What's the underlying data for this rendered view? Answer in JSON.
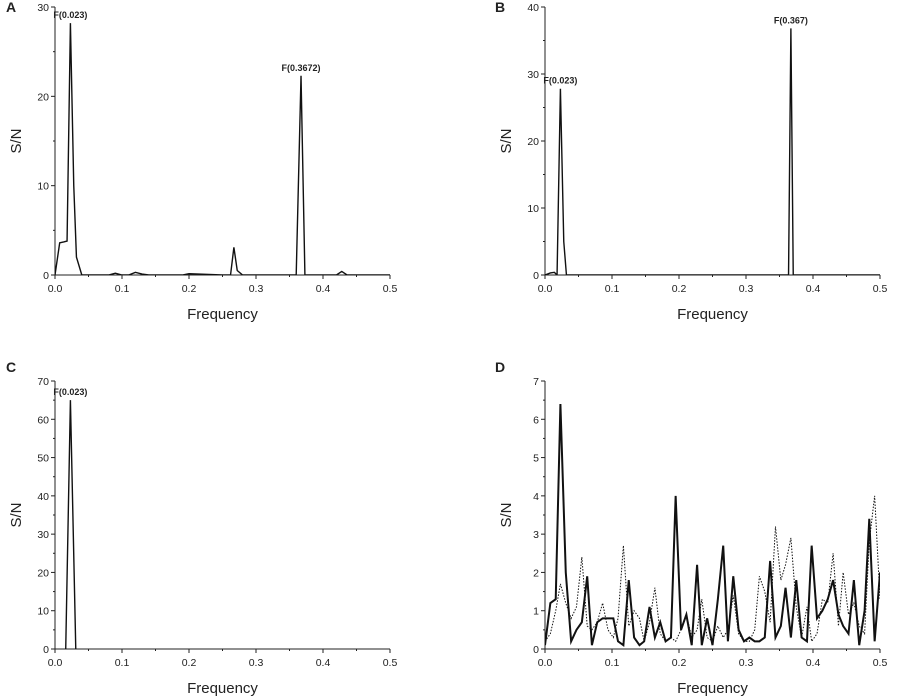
{
  "chart_data": [
    {
      "id": "A",
      "type": "line",
      "xlabel": "Frequency",
      "ylabel": "S/N",
      "xlim": [
        0,
        0.5
      ],
      "ylim": [
        0,
        30
      ],
      "xticks": [
        0.0,
        0.1,
        0.2,
        0.3,
        0.4,
        0.5
      ],
      "xtick_labels": [
        "0.0",
        "0.1",
        "0.2",
        "0.3",
        "0.4",
        "0.5"
      ],
      "yticks": [
        0,
        10,
        20,
        30
      ],
      "ytick_labels": [
        "0",
        "10",
        "20",
        "30"
      ],
      "series": [
        {
          "style": "solid",
          "x": [
            0,
            0.007,
            0.013,
            0.018,
            0.023,
            0.028,
            0.032,
            0.04,
            0.05,
            0.08,
            0.09,
            0.1,
            0.11,
            0.12,
            0.13,
            0.14,
            0.19,
            0.2,
            0.25,
            0.255,
            0.262,
            0.267,
            0.272,
            0.28,
            0.35,
            0.36,
            0.3672,
            0.373,
            0.38,
            0.42,
            0.428,
            0.436,
            0.5
          ],
          "y": [
            0,
            3.6,
            3.7,
            3.8,
            28.2,
            10,
            2,
            0,
            0,
            0,
            0.2,
            0,
            0,
            0.3,
            0.1,
            0,
            0,
            0.15,
            0,
            0,
            0,
            3.1,
            0.5,
            0,
            0,
            0,
            22.3,
            0,
            0,
            0,
            0.4,
            0,
            0
          ]
        }
      ],
      "annotations": [
        {
          "text": "F(0.023)",
          "x": 0.023,
          "y": 28.2
        },
        {
          "text": "F(0.3672)",
          "x": 0.3672,
          "y": 22.3
        }
      ]
    },
    {
      "id": "B",
      "type": "line",
      "xlabel": "Frequency",
      "ylabel": "S/N",
      "xlim": [
        0,
        0.5
      ],
      "ylim": [
        0,
        40
      ],
      "xticks": [
        0.0,
        0.1,
        0.2,
        0.3,
        0.4,
        0.5
      ],
      "xtick_labels": [
        "0.0",
        "0.1",
        "0.2",
        "0.3",
        "0.4",
        "0.5"
      ],
      "yticks": [
        0,
        10,
        20,
        30,
        40
      ],
      "ytick_labels": [
        "0",
        "10",
        "20",
        "30",
        "40"
      ],
      "series": [
        {
          "style": "solid",
          "x": [
            0,
            0.008,
            0.014,
            0.018,
            0.023,
            0.028,
            0.032,
            0.5,
            0.36,
            0.3635,
            0.367,
            0.3705,
            0.374
          ],
          "y": [
            0,
            0.3,
            0.4,
            0,
            27.8,
            5,
            0,
            0,
            0,
            0,
            36.8,
            0,
            0
          ]
        }
      ],
      "annotations": [
        {
          "text": "F(0.023)",
          "x": 0.023,
          "y": 27.8
        },
        {
          "text": "F(0.367)",
          "x": 0.367,
          "y": 36.8
        }
      ]
    },
    {
      "id": "C",
      "type": "line",
      "xlabel": "Frequency",
      "ylabel": "S/N",
      "xlim": [
        0,
        0.5
      ],
      "ylim": [
        0,
        70
      ],
      "xticks": [
        0.0,
        0.1,
        0.2,
        0.3,
        0.4,
        0.5
      ],
      "xtick_labels": [
        "0.0",
        "0.1",
        "0.2",
        "0.3",
        "0.4",
        "0.5"
      ],
      "yticks": [
        0,
        10,
        20,
        30,
        40,
        50,
        60,
        70
      ],
      "ytick_labels": [
        "0",
        "10",
        "20",
        "30",
        "40",
        "50",
        "60",
        "70"
      ],
      "series": [
        {
          "style": "solid",
          "x": [
            0.016,
            0.023,
            0.031
          ],
          "y": [
            0,
            65,
            0
          ]
        }
      ],
      "annotations": [
        {
          "text": "F(0.023)",
          "x": 0.023,
          "y": 65
        }
      ]
    },
    {
      "id": "D",
      "type": "line",
      "xlabel": "Frequency",
      "ylabel": "S/N",
      "xlim": [
        0,
        0.5
      ],
      "ylim": [
        0,
        7
      ],
      "xticks": [
        0.0,
        0.1,
        0.2,
        0.3,
        0.4,
        0.5
      ],
      "xtick_labels": [
        "0.0",
        "0.1",
        "0.2",
        "0.3",
        "0.4",
        "0.5"
      ],
      "yticks": [
        0,
        1,
        2,
        3,
        4,
        5,
        6,
        7
      ],
      "ytick_labels": [
        "0",
        "1",
        "2",
        "3",
        "4",
        "5",
        "6",
        "7"
      ],
      "series": [
        {
          "style": "solid",
          "x": [
            0.0,
            0.008,
            0.016,
            0.023,
            0.031,
            0.039,
            0.047,
            0.055,
            0.063,
            0.07,
            0.078,
            0.086,
            0.094,
            0.102,
            0.109,
            0.117,
            0.125,
            0.133,
            0.141,
            0.148,
            0.156,
            0.164,
            0.172,
            0.18,
            0.188,
            0.195,
            0.203,
            0.211,
            0.219,
            0.227,
            0.234,
            0.242,
            0.25,
            0.258,
            0.266,
            0.273,
            0.281,
            0.289,
            0.297,
            0.305,
            0.313,
            0.32,
            0.328,
            0.336,
            0.344,
            0.352,
            0.359,
            0.367,
            0.375,
            0.383,
            0.391,
            0.398,
            0.406,
            0.414,
            0.422,
            0.43,
            0.438,
            0.445,
            0.453,
            0.461,
            0.469,
            0.477,
            0.484,
            0.492,
            0.5
          ],
          "y": [
            0.1,
            1.2,
            1.3,
            6.4,
            2.0,
            0.2,
            0.5,
            0.7,
            1.9,
            0.1,
            0.7,
            0.8,
            0.8,
            0.8,
            0.2,
            0.1,
            1.8,
            0.3,
            0.1,
            0.2,
            1.1,
            0.3,
            0.7,
            0.2,
            0.3,
            4.0,
            0.5,
            0.9,
            0.1,
            2.2,
            0.1,
            0.8,
            0.1,
            1.3,
            2.7,
            0.2,
            1.9,
            0.5,
            0.2,
            0.3,
            0.2,
            0.2,
            0.3,
            2.3,
            0.3,
            0.6,
            1.6,
            0.3,
            1.8,
            0.3,
            0.2,
            2.7,
            0.8,
            1.0,
            1.3,
            1.8,
            0.9,
            0.6,
            0.4,
            1.8,
            0.1,
            1.0,
            3.4,
            0.2,
            2.0
          ]
        },
        {
          "style": "dotted",
          "x": [
            0.0,
            0.008,
            0.016,
            0.023,
            0.031,
            0.039,
            0.047,
            0.055,
            0.063,
            0.07,
            0.078,
            0.086,
            0.094,
            0.102,
            0.109,
            0.117,
            0.125,
            0.133,
            0.141,
            0.148,
            0.156,
            0.164,
            0.172,
            0.18,
            0.188,
            0.195,
            0.203,
            0.211,
            0.219,
            0.227,
            0.234,
            0.242,
            0.25,
            0.258,
            0.266,
            0.273,
            0.281,
            0.289,
            0.297,
            0.305,
            0.313,
            0.32,
            0.328,
            0.336,
            0.344,
            0.352,
            0.359,
            0.367,
            0.375,
            0.383,
            0.391,
            0.398,
            0.406,
            0.414,
            0.422,
            0.43,
            0.438,
            0.445,
            0.453,
            0.461,
            0.469,
            0.477,
            0.484,
            0.492,
            0.5
          ],
          "y": [
            0.2,
            0.4,
            1.0,
            1.7,
            1.2,
            0.8,
            1.1,
            2.4,
            0.6,
            0.5,
            0.7,
            1.2,
            0.5,
            0.3,
            0.8,
            2.7,
            0.6,
            1.0,
            0.8,
            0.2,
            0.7,
            1.6,
            0.4,
            0.2,
            0.3,
            0.2,
            0.5,
            0.9,
            0.3,
            0.5,
            1.3,
            0.3,
            0.2,
            0.6,
            0.3,
            0.5,
            1.4,
            0.4,
            0.2,
            0.2,
            0.5,
            1.9,
            1.5,
            0.7,
            3.2,
            1.8,
            2.2,
            2.9,
            1.1,
            0.3,
            1.1,
            0.2,
            0.4,
            1.3,
            1.2,
            2.5,
            0.6,
            2.0,
            0.9,
            1.2,
            0.6,
            0.4,
            2.8,
            4.0,
            1.3
          ]
        }
      ],
      "annotations": []
    }
  ]
}
